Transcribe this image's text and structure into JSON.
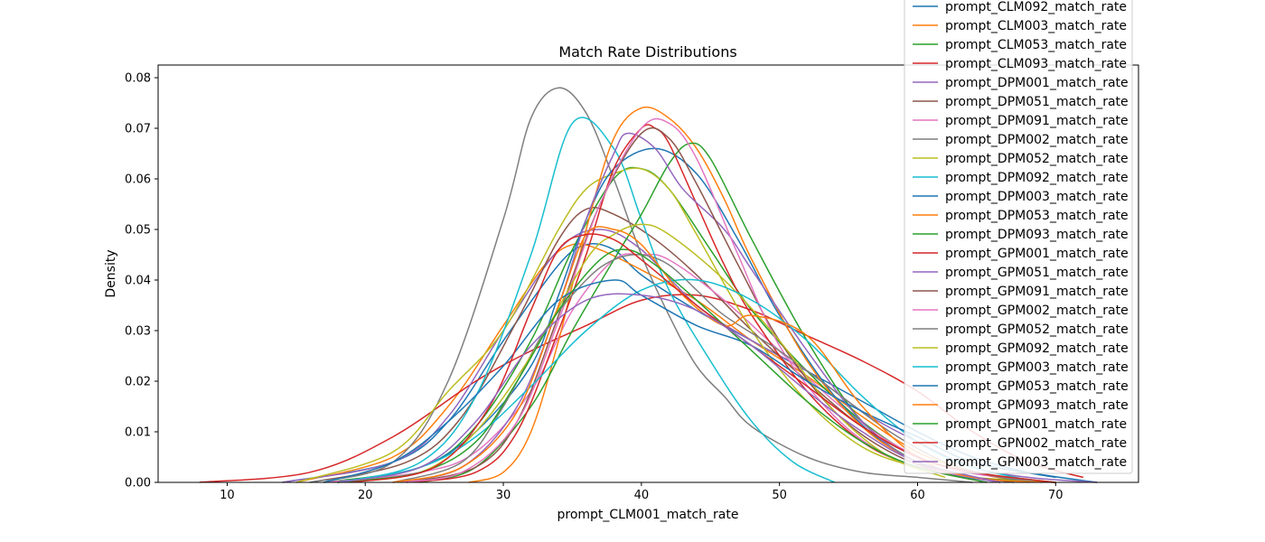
{
  "chart_data": {
    "type": "line",
    "title": "Match Rate Distributions",
    "xlabel": "prompt_CLM001_match_rate",
    "ylabel": "Density",
    "xlim": [
      5,
      76
    ],
    "ylim": [
      0,
      0.0825
    ],
    "x_ticks": [
      10,
      20,
      30,
      40,
      50,
      60,
      70
    ],
    "x_tick_labels": [
      "10",
      "20",
      "30",
      "40",
      "50",
      "60",
      "70"
    ],
    "y_ticks": [
      0.0,
      0.01,
      0.02,
      0.03,
      0.04,
      0.05,
      0.06,
      0.07,
      0.08
    ],
    "y_tick_labels": [
      "0.00",
      "0.01",
      "0.02",
      "0.03",
      "0.04",
      "0.05",
      "0.06",
      "0.07",
      "0.08"
    ],
    "grid": false,
    "legend_position": "top-right",
    "legend_entries": [
      "prompt_CLM092_match_rate",
      "prompt_CLM003_match_rate",
      "prompt_CLM053_match_rate",
      "prompt_CLM093_match_rate",
      "prompt_DPM001_match_rate",
      "prompt_DPM051_match_rate",
      "prompt_DPM091_match_rate",
      "prompt_DPM002_match_rate",
      "prompt_DPM052_match_rate",
      "prompt_DPM092_match_rate",
      "prompt_DPM003_match_rate",
      "prompt_DPM053_match_rate",
      "prompt_DPM093_match_rate",
      "prompt_GPM001_match_rate",
      "prompt_GPM051_match_rate",
      "prompt_GPM091_match_rate",
      "prompt_GPM002_match_rate",
      "prompt_GPM052_match_rate",
      "prompt_GPM092_match_rate",
      "prompt_GPM003_match_rate",
      "prompt_GPM053_match_rate",
      "prompt_GPM093_match_rate",
      "prompt_GPN001_match_rate",
      "prompt_GPN002_match_rate",
      "prompt_GPN003_match_rate"
    ],
    "series": [
      {
        "color": "#1f77b4",
        "x": [
          14,
          22,
          26,
          30,
          34,
          36,
          38,
          40,
          44,
          48,
          52,
          56,
          60,
          64,
          68,
          73
        ],
        "y": [
          0,
          0.004,
          0.012,
          0.028,
          0.043,
          0.047,
          0.046,
          0.041,
          0.034,
          0.028,
          0.022,
          0.016,
          0.01,
          0.005,
          0.002,
          0
        ]
      },
      {
        "color": "#ff7f0e",
        "x": [
          15,
          22,
          26,
          30,
          33,
          35,
          37,
          40,
          44,
          48,
          52,
          56,
          60,
          64,
          68
        ],
        "y": [
          0,
          0.005,
          0.015,
          0.031,
          0.043,
          0.047,
          0.046,
          0.042,
          0.036,
          0.028,
          0.021,
          0.013,
          0.006,
          0.002,
          0
        ]
      },
      {
        "color": "#2ca02c",
        "x": [
          17,
          24,
          28,
          32,
          35,
          38,
          40,
          42,
          45,
          48,
          52,
          56,
          60,
          64,
          70
        ],
        "y": [
          0,
          0.003,
          0.011,
          0.028,
          0.046,
          0.06,
          0.062,
          0.058,
          0.046,
          0.034,
          0.022,
          0.012,
          0.005,
          0.002,
          0
        ]
      },
      {
        "color": "#d62728",
        "x": [
          8,
          16,
          22,
          28,
          32,
          36,
          40,
          44,
          48,
          52,
          56,
          60,
          64,
          68,
          72
        ],
        "y": [
          0,
          0.002,
          0.009,
          0.02,
          0.026,
          0.031,
          0.036,
          0.037,
          0.034,
          0.029,
          0.024,
          0.018,
          0.01,
          0.004,
          0.001
        ]
      },
      {
        "color": "#9467bd",
        "x": [
          14,
          22,
          26,
          30,
          34,
          37,
          40,
          44,
          48,
          52,
          56,
          60,
          64,
          68,
          73
        ],
        "y": [
          0,
          0.004,
          0.013,
          0.03,
          0.046,
          0.05,
          0.046,
          0.035,
          0.028,
          0.022,
          0.014,
          0.008,
          0.003,
          0.001,
          0
        ]
      },
      {
        "color": "#8c564b",
        "x": [
          16,
          23,
          27,
          31,
          34,
          36,
          38,
          41,
          44,
          48,
          52,
          56,
          60,
          64,
          69
        ],
        "y": [
          0,
          0.004,
          0.013,
          0.032,
          0.048,
          0.054,
          0.053,
          0.048,
          0.041,
          0.03,
          0.02,
          0.011,
          0.005,
          0.002,
          0
        ]
      },
      {
        "color": "#e377c2",
        "x": [
          17,
          24,
          28,
          32,
          35,
          38,
          40,
          42,
          46,
          50,
          54,
          58,
          62,
          66,
          70
        ],
        "y": [
          0,
          0.002,
          0.006,
          0.018,
          0.034,
          0.044,
          0.045,
          0.044,
          0.036,
          0.026,
          0.016,
          0.008,
          0.003,
          0.001,
          0
        ]
      },
      {
        "color": "#7f7f7f",
        "x": [
          16,
          22,
          26,
          30,
          32,
          34,
          36,
          38,
          40,
          42,
          44,
          46,
          48,
          52,
          56,
          60,
          64
        ],
        "y": [
          0,
          0.004,
          0.02,
          0.052,
          0.072,
          0.078,
          0.073,
          0.06,
          0.045,
          0.033,
          0.023,
          0.017,
          0.011,
          0.005,
          0.002,
          0.001,
          0
        ]
      },
      {
        "color": "#bcbd22",
        "x": [
          15,
          22,
          26,
          30,
          34,
          36,
          38,
          40,
          42,
          44,
          48,
          52,
          56,
          60,
          64,
          70
        ],
        "y": [
          0,
          0.006,
          0.018,
          0.03,
          0.05,
          0.058,
          0.061,
          0.062,
          0.058,
          0.049,
          0.03,
          0.016,
          0.007,
          0.003,
          0.001,
          0
        ]
      },
      {
        "color": "#17becf",
        "x": [
          18,
          24,
          28,
          32,
          35,
          38,
          40,
          42,
          45,
          48,
          51,
          54
        ],
        "y": [
          0,
          0.004,
          0.017,
          0.045,
          0.071,
          0.066,
          0.052,
          0.038,
          0.024,
          0.012,
          0.004,
          0
        ]
      },
      {
        "color": "#1f77b4",
        "x": [
          18,
          24,
          28,
          32,
          34,
          36,
          38,
          41,
          44,
          47,
          50,
          54,
          58,
          62,
          66
        ],
        "y": [
          0,
          0.003,
          0.01,
          0.023,
          0.037,
          0.052,
          0.062,
          0.066,
          0.061,
          0.048,
          0.033,
          0.017,
          0.007,
          0.002,
          0
        ]
      },
      {
        "color": "#ff7f0e",
        "x": [
          27.5,
          30,
          32,
          34,
          36,
          38,
          40,
          42,
          44,
          46,
          48,
          52,
          56,
          60,
          64,
          70
        ],
        "y": [
          0,
          0.002,
          0.01,
          0.028,
          0.05,
          0.068,
          0.074,
          0.072,
          0.066,
          0.056,
          0.044,
          0.024,
          0.011,
          0.004,
          0.001,
          0
        ]
      },
      {
        "color": "#2ca02c",
        "x": [
          24,
          28,
          32,
          35,
          38,
          40,
          42,
          43.5,
          45,
          48,
          52,
          56,
          60,
          64,
          70
        ],
        "y": [
          0,
          0.003,
          0.015,
          0.03,
          0.044,
          0.053,
          0.063,
          0.067,
          0.064,
          0.048,
          0.028,
          0.012,
          0.004,
          0.001,
          0
        ]
      },
      {
        "color": "#d62728",
        "x": [
          23,
          28,
          31,
          34,
          36,
          38,
          40,
          41,
          42,
          44,
          46,
          48,
          52,
          56,
          60,
          65
        ],
        "y": [
          0,
          0.002,
          0.01,
          0.03,
          0.045,
          0.062,
          0.07,
          0.07,
          0.067,
          0.055,
          0.043,
          0.033,
          0.018,
          0.008,
          0.003,
          0
        ]
      },
      {
        "color": "#9467bd",
        "x": [
          22,
          27,
          31,
          34,
          36,
          38,
          39,
          41,
          43,
          46,
          48,
          52,
          56,
          60,
          66
        ],
        "y": [
          0,
          0.003,
          0.015,
          0.035,
          0.052,
          0.065,
          0.069,
          0.066,
          0.058,
          0.05,
          0.042,
          0.026,
          0.012,
          0.004,
          0
        ]
      },
      {
        "color": "#8c564b",
        "x": [
          23,
          28,
          31,
          34,
          37,
          40,
          42,
          44,
          47,
          50,
          54,
          58,
          62,
          67
        ],
        "y": [
          0,
          0.003,
          0.012,
          0.033,
          0.055,
          0.069,
          0.068,
          0.059,
          0.043,
          0.028,
          0.014,
          0.006,
          0.002,
          0
        ]
      },
      {
        "color": "#e377c2",
        "x": [
          22,
          27,
          31,
          34,
          37,
          40,
          42,
          44,
          47,
          50,
          54,
          58,
          62,
          66
        ],
        "y": [
          0,
          0.002,
          0.012,
          0.032,
          0.055,
          0.07,
          0.071,
          0.064,
          0.045,
          0.027,
          0.013,
          0.005,
          0.002,
          0
        ]
      },
      {
        "color": "#7f7f7f",
        "x": [
          22,
          27,
          30,
          33,
          36,
          38,
          40,
          42,
          44,
          46,
          50,
          54,
          58,
          62,
          66,
          70
        ],
        "y": [
          0,
          0.004,
          0.015,
          0.03,
          0.04,
          0.044,
          0.045,
          0.043,
          0.038,
          0.033,
          0.026,
          0.018,
          0.01,
          0.004,
          0.001,
          0
        ]
      },
      {
        "color": "#bcbd22",
        "x": [
          18,
          24,
          28,
          32,
          36,
          38,
          40,
          42,
          46,
          50,
          54,
          58,
          62
        ],
        "y": [
          0,
          0.002,
          0.01,
          0.025,
          0.044,
          0.049,
          0.051,
          0.049,
          0.04,
          0.028,
          0.014,
          0.005,
          0.001
        ]
      },
      {
        "color": "#17becf",
        "x": [
          18,
          24,
          28,
          32,
          36,
          40,
          44,
          48,
          52,
          56,
          60,
          64,
          69
        ],
        "y": [
          0,
          0.003,
          0.009,
          0.019,
          0.03,
          0.038,
          0.04,
          0.036,
          0.028,
          0.017,
          0.008,
          0.003,
          0
        ]
      },
      {
        "color": "#1f77b4",
        "x": [
          17,
          22,
          26,
          30,
          34,
          38,
          40,
          44,
          48,
          52,
          56,
          60,
          64,
          70
        ],
        "y": [
          0,
          0.004,
          0.012,
          0.023,
          0.036,
          0.04,
          0.037,
          0.031,
          0.027,
          0.02,
          0.014,
          0.009,
          0.004,
          0.001
        ]
      },
      {
        "color": "#ff7f0e",
        "x": [
          22,
          27,
          31,
          34,
          36,
          38,
          40,
          43,
          46,
          48,
          52,
          56,
          60,
          64,
          70
        ],
        "y": [
          0,
          0.003,
          0.014,
          0.035,
          0.049,
          0.05,
          0.047,
          0.037,
          0.031,
          0.033,
          0.029,
          0.015,
          0.005,
          0.001,
          0
        ]
      },
      {
        "color": "#2ca02c",
        "x": [
          18,
          24,
          28,
          31,
          34,
          37,
          39,
          41,
          44,
          48,
          52,
          56,
          60,
          65
        ],
        "y": [
          0,
          0.002,
          0.008,
          0.02,
          0.034,
          0.044,
          0.046,
          0.043,
          0.036,
          0.026,
          0.016,
          0.008,
          0.003,
          0
        ]
      },
      {
        "color": "#d62728",
        "x": [
          19,
          25,
          29,
          32,
          34,
          36,
          38,
          40,
          44,
          48,
          52,
          56,
          60,
          64,
          70
        ],
        "y": [
          0,
          0.003,
          0.015,
          0.034,
          0.046,
          0.049,
          0.048,
          0.044,
          0.035,
          0.027,
          0.019,
          0.011,
          0.005,
          0.002,
          0
        ]
      },
      {
        "color": "#9467bd",
        "x": [
          18,
          24,
          28,
          32,
          36,
          40,
          44,
          48,
          52,
          56,
          60,
          66
        ],
        "y": [
          0,
          0.003,
          0.012,
          0.027,
          0.036,
          0.037,
          0.034,
          0.027,
          0.018,
          0.01,
          0.004,
          0
        ]
      }
    ]
  }
}
